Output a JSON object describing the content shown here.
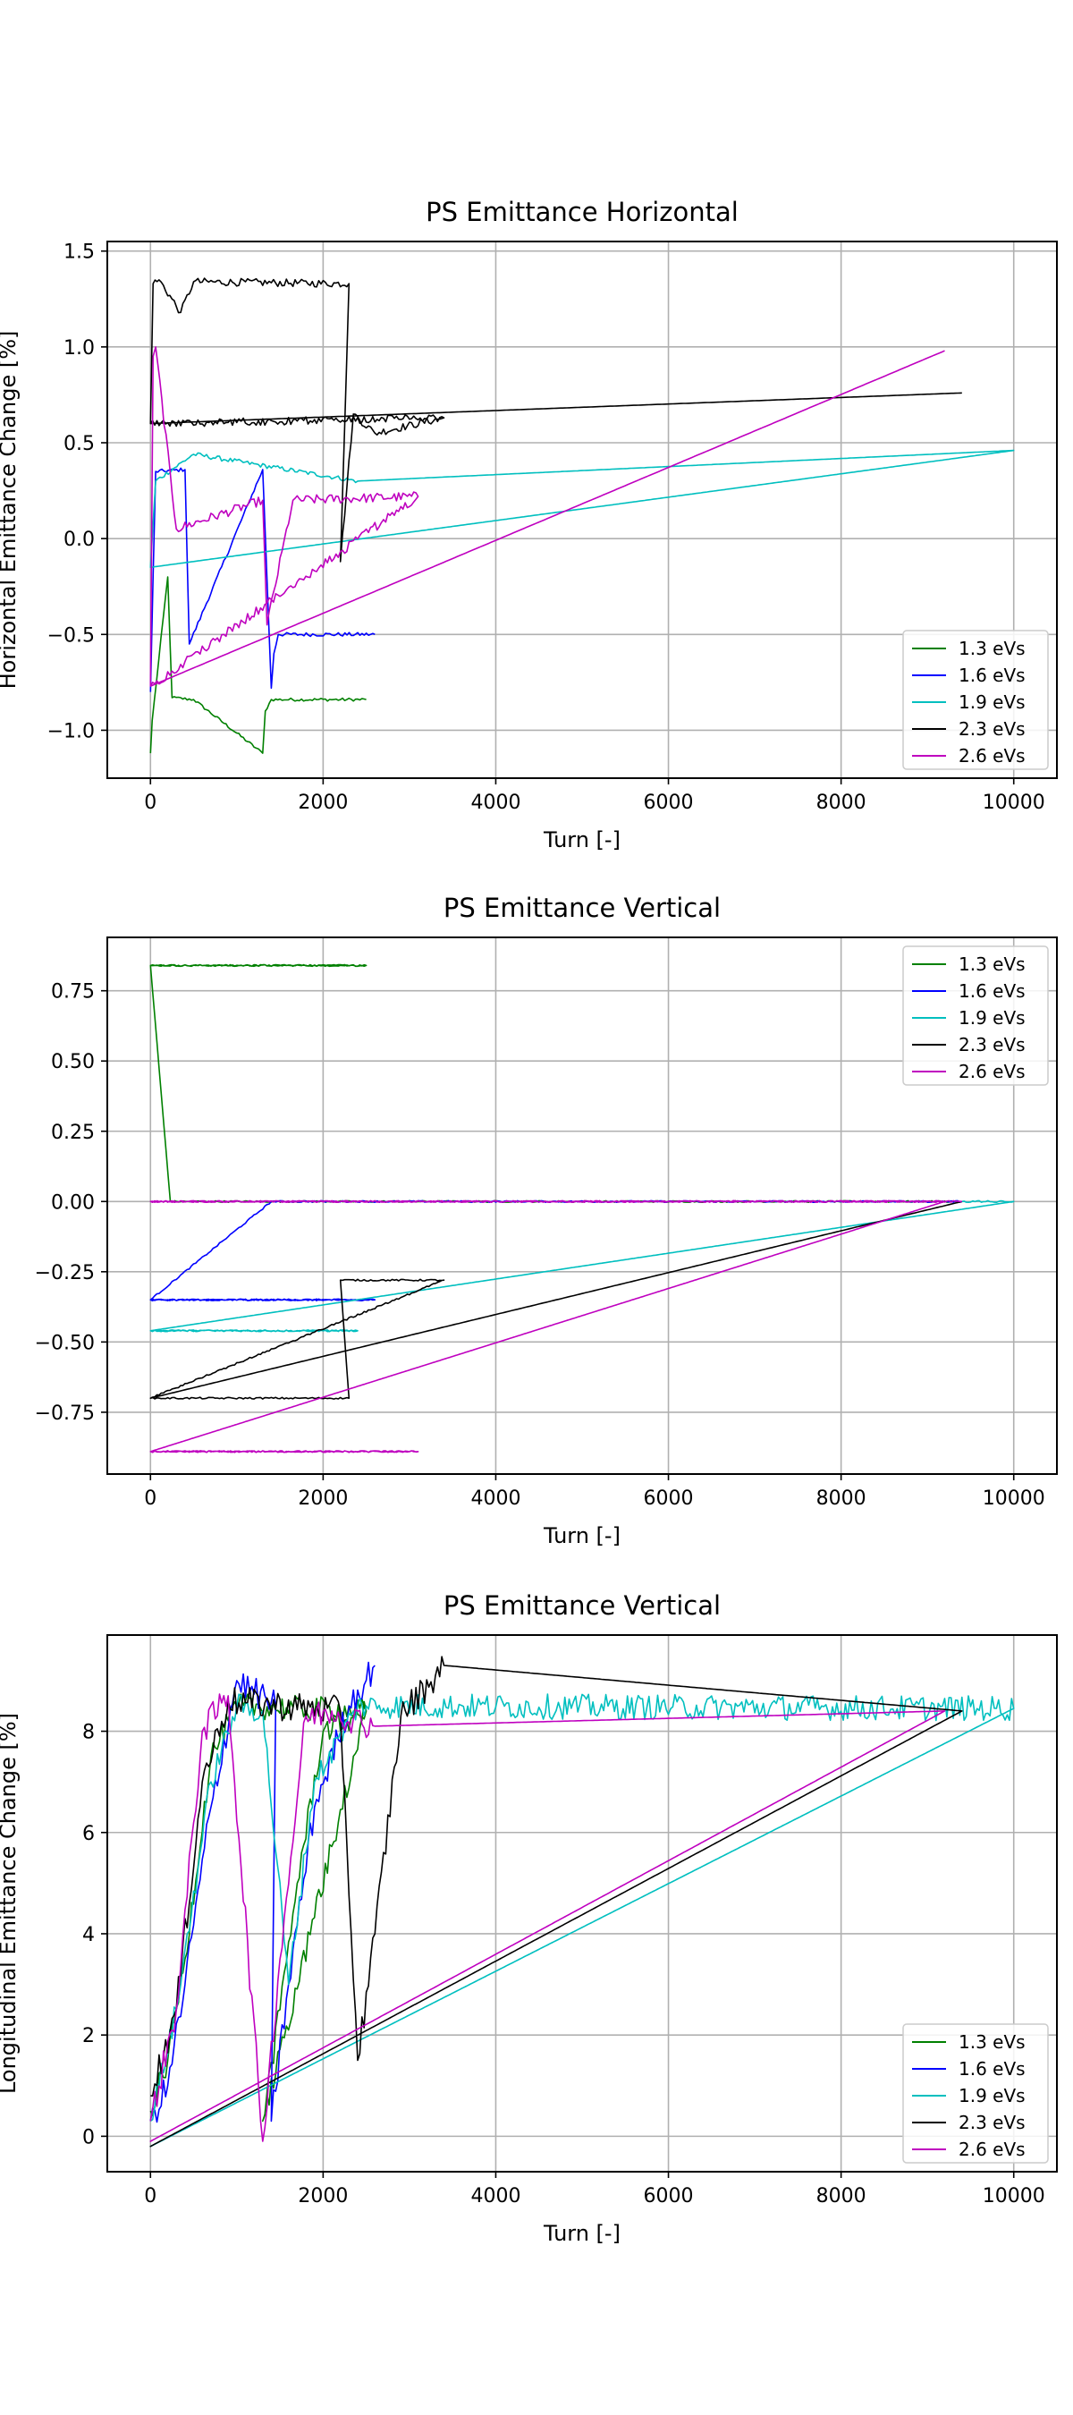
{
  "chart_data": [
    {
      "type": "line",
      "title": "PS Emittance Horizontal",
      "xlabel": "Turn [-]",
      "ylabel": "Horizontal Emittance Change [%]",
      "xlim": [
        -500,
        10500
      ],
      "ylim": [
        -1.25,
        1.55
      ],
      "xticks": [
        0,
        2000,
        4000,
        6000,
        8000,
        10000
      ],
      "xtick_labels": [
        "0",
        "2000",
        "4000",
        "6000",
        "8000",
        "10000"
      ],
      "yticks": [
        -1.0,
        -0.5,
        0.0,
        0.5,
        1.0,
        1.5
      ],
      "ytick_labels": [
        "−1.0",
        "−0.5",
        "0.0",
        "0.5",
        "1.0",
        "1.5"
      ],
      "grid": true,
      "legend_position": "lower-right",
      "series": [
        {
          "name": "1.3 eVs",
          "color": "#008000",
          "noise": 0.008,
          "x": [
            0,
            20,
            200,
            250,
            500,
            1300,
            1330,
            1400,
            2500
          ],
          "y": [
            -1.12,
            -0.95,
            -0.2,
            -0.83,
            -0.84,
            -1.12,
            -0.9,
            -0.84,
            -0.84
          ]
        },
        {
          "name": "1.6 eVs",
          "color": "#0000ff",
          "noise": 0.01,
          "x": [
            0,
            30,
            60,
            400,
            450,
            1300,
            1400,
            1430,
            1480,
            2600
          ],
          "y": [
            -0.8,
            -0.2,
            0.35,
            0.36,
            -0.55,
            0.36,
            -0.78,
            -0.6,
            -0.5,
            -0.5
          ]
        },
        {
          "name": "1.9 eVs",
          "color": "#00bfbf",
          "noise": 0.012,
          "x": [
            0,
            20,
            60,
            500,
            2400,
            10000,
            0,
            10000
          ],
          "y": [
            -0.15,
            0.0,
            0.3,
            0.44,
            0.3,
            0.46,
            -0.15,
            0.46
          ]
        },
        {
          "name": "2.3 eVs",
          "color": "#000000",
          "noise": 0.02,
          "x": [
            0,
            30,
            100,
            350,
            500,
            2300,
            2200,
            2350,
            2600,
            3400,
            0,
            9400
          ],
          "y": [
            0.6,
            1.33,
            1.35,
            1.18,
            1.34,
            1.33,
            -0.12,
            0.65,
            0.55,
            0.63,
            0.6,
            0.76
          ]
        },
        {
          "name": "2.6 eVs",
          "color": "#bf00bf",
          "noise": 0.025,
          "x": [
            0,
            30,
            60,
            300,
            1300,
            1350,
            1650,
            3100,
            0,
            9200
          ],
          "y": [
            -0.77,
            0.95,
            1.0,
            0.05,
            0.2,
            -0.45,
            0.2,
            0.22,
            -0.77,
            0.98
          ]
        }
      ]
    },
    {
      "type": "line",
      "title": "PS Emittance Vertical",
      "xlabel": "Turn [-]",
      "ylabel": "",
      "xlim": [
        -500,
        10500
      ],
      "ylim": [
        -0.97,
        0.94
      ],
      "xticks": [
        0,
        2000,
        4000,
        6000,
        8000,
        10000
      ],
      "xtick_labels": [
        "0",
        "2000",
        "4000",
        "6000",
        "8000",
        "10000"
      ],
      "yticks": [
        -0.75,
        -0.5,
        -0.25,
        0.0,
        0.25,
        0.5,
        0.75
      ],
      "ytick_labels": [
        "−0.75",
        "−0.50",
        "−0.25",
        "0.00",
        "0.25",
        "0.50",
        "0.75"
      ],
      "grid": true,
      "legend_position": "upper-right",
      "series": [
        {
          "name": "1.3 eVs",
          "color": "#008000",
          "noise": 0.003,
          "x": [
            0,
            2500,
            0,
            230,
            9400
          ],
          "y": [
            0.84,
            0.84,
            0.84,
            0.0,
            0.0
          ]
        },
        {
          "name": "1.6 eVs",
          "color": "#0000ff",
          "noise": 0.003,
          "x": [
            0,
            2600,
            0,
            1400,
            9400
          ],
          "y": [
            -0.35,
            -0.35,
            -0.35,
            0.0,
            0.0
          ]
        },
        {
          "name": "1.9 eVs",
          "color": "#00bfbf",
          "noise": 0.003,
          "x": [
            0,
            2400,
            0,
            10000,
            9400
          ],
          "y": [
            -0.46,
            -0.46,
            -0.46,
            0.0,
            0.0
          ]
        },
        {
          "name": "2.3 eVs",
          "color": "#000000",
          "noise": 0.003,
          "x": [
            0,
            2300,
            2200,
            3400,
            0,
            9400
          ],
          "y": [
            -0.7,
            -0.7,
            -0.28,
            -0.28,
            -0.7,
            0.0
          ]
        },
        {
          "name": "2.6 eVs",
          "color": "#bf00bf",
          "noise": 0.003,
          "x": [
            0,
            3100,
            0,
            9200,
            0,
            9400
          ],
          "y": [
            -0.89,
            -0.89,
            -0.89,
            0.0,
            0.0,
            0.0
          ]
        }
      ]
    },
    {
      "type": "line",
      "title": "PS Emittance Vertical",
      "xlabel": "Turn [-]",
      "ylabel": "Longitudinal Emittance Change [%]",
      "xlim": [
        -500,
        10500
      ],
      "ylim": [
        -0.7,
        9.9
      ],
      "xticks": [
        0,
        2000,
        4000,
        6000,
        8000,
        10000
      ],
      "xtick_labels": [
        "0",
        "2000",
        "4000",
        "6000",
        "8000",
        "10000"
      ],
      "yticks": [
        0,
        2,
        4,
        6,
        8
      ],
      "ytick_labels": [
        "0",
        "2",
        "4",
        "6",
        "8"
      ],
      "grid": true,
      "legend_position": "lower-right",
      "series": [
        {
          "name": "1.3 eVs",
          "color": "#008000",
          "noise": 0.25,
          "x": [
            0,
            200,
            400,
            700,
            1000,
            2500,
            1300,
            1500,
            1700,
            2000,
            2500
          ],
          "y": [
            0.5,
            1.5,
            3.5,
            7.5,
            8.5,
            8.4,
            0.3,
            2.5,
            5.0,
            8.0,
            8.4
          ]
        },
        {
          "name": "1.6 eVs",
          "color": "#0000ff",
          "noise": 0.3,
          "x": [
            0,
            200,
            400,
            700,
            1000,
            1450,
            1400,
            1600,
            1900,
            2300,
            2600
          ],
          "y": [
            0.3,
            1.0,
            3.0,
            6.5,
            9.0,
            8.5,
            0.3,
            3.0,
            6.5,
            8.5,
            9.3
          ]
        },
        {
          "name": "1.9 eVs",
          "color": "#00bfbf",
          "noise": 0.25,
          "x": [
            0,
            300,
            700,
            1000,
            1300,
            1600,
            1900,
            2400,
            10000,
            0,
            10000
          ],
          "y": [
            0.3,
            2.5,
            7.0,
            8.5,
            8.4,
            3.0,
            7.0,
            8.5,
            8.45,
            -0.2,
            8.45
          ]
        },
        {
          "name": "2.3 eVs",
          "color": "#000000",
          "noise": 0.3,
          "x": [
            0,
            300,
            600,
            900,
            2200,
            2400,
            2600,
            2900,
            3400,
            9400,
            0,
            9400
          ],
          "y": [
            0.8,
            2.5,
            7.0,
            8.6,
            8.4,
            1.5,
            4.0,
            8.3,
            9.3,
            8.4,
            -0.2,
            8.4
          ]
        },
        {
          "name": "2.6 eVs",
          "color": "#bf00bf",
          "noise": 0.3,
          "x": [
            0,
            300,
            600,
            900,
            1300,
            1500,
            1800,
            2100,
            2600,
            9200,
            0,
            9200
          ],
          "y": [
            0.3,
            2.5,
            8.0,
            8.7,
            -0.1,
            3.5,
            8.3,
            8.4,
            8.1,
            8.4,
            -0.1,
            8.4
          ]
        }
      ]
    }
  ]
}
